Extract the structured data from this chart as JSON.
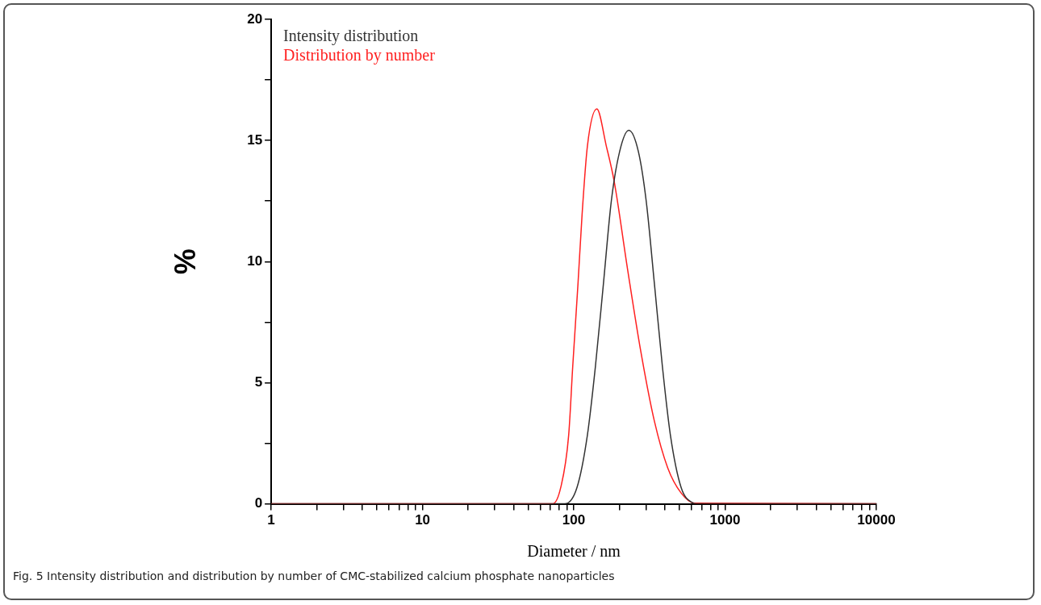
{
  "chart_data": {
    "type": "line",
    "xlabel": "Diameter / nm",
    "ylabel": "%",
    "log": "x",
    "legend": "top left",
    "marker": "none",
    "line_style": "solid",
    "grid": false,
    "xlim": [
      1,
      10000
    ],
    "ylim": [
      0,
      20
    ],
    "xticks": [
      1,
      {
        "value": 2,
        "label": null
      },
      {
        "value": 3,
        "label": null
      },
      {
        "value": 4,
        "label": null
      },
      {
        "value": 5,
        "label": null
      },
      {
        "value": 6,
        "label": null
      },
      {
        "value": 7,
        "label": null
      },
      {
        "value": 8,
        "label": null
      },
      {
        "value": 9,
        "label": null
      },
      10,
      {
        "value": 20,
        "label": null
      },
      {
        "value": 30,
        "label": null
      },
      {
        "value": 40,
        "label": null
      },
      {
        "value": 50,
        "label": null
      },
      {
        "value": 60,
        "label": null
      },
      {
        "value": 70,
        "label": null
      },
      {
        "value": 80,
        "label": null
      },
      {
        "value": 90,
        "label": null
      },
      100,
      {
        "value": 200,
        "label": null
      },
      {
        "value": 300,
        "label": null
      },
      {
        "value": 400,
        "label": null
      },
      {
        "value": 500,
        "label": null
      },
      {
        "value": 600,
        "label": null
      },
      {
        "value": 700,
        "label": null
      },
      {
        "value": 800,
        "label": null
      },
      {
        "value": 900,
        "label": null
      },
      1000,
      {
        "value": 2000,
        "label": null
      },
      {
        "value": 3000,
        "label": null
      },
      {
        "value": 4000,
        "label": null
      },
      {
        "value": 5000,
        "label": null
      },
      {
        "value": 6000,
        "label": null
      },
      {
        "value": 7000,
        "label": null
      },
      {
        "value": 8000,
        "label": null
      },
      {
        "value": 9000,
        "label": null
      },
      10000
    ],
    "yticks": [
      0,
      {
        "value": 2.5,
        "label": null
      },
      5,
      {
        "value": 7.5,
        "label": null
      },
      10,
      {
        "value": 12.5,
        "label": null
      },
      15,
      {
        "value": 17.5,
        "label": null
      },
      20
    ],
    "series": [
      {
        "name": "Intensity distribution",
        "color": "#333333",
        "x": [
          1,
          87,
          105,
          123,
          139,
          157,
          177,
          201,
          231,
          267,
          301,
          341,
          385,
          435,
          512,
          615,
          646,
          10000
        ],
        "values": [
          0,
          0,
          0.68,
          2.84,
          5.68,
          9.09,
          12.5,
          14.55,
          15.42,
          14.55,
          12.5,
          9.09,
          5.68,
          2.84,
          0.68,
          0.03,
          0,
          0
        ]
      },
      {
        "name": "Distribution by number",
        "color": "#ff2020",
        "x": [
          1,
          72.5,
          82,
          92.5,
          98.4,
          106.6,
          113.4,
          123,
          142,
          164,
          185,
          227,
          278,
          341,
          418,
          512,
          627,
          10000
        ],
        "values": [
          0,
          0,
          0.68,
          2.84,
          5.68,
          9.09,
          11.93,
          14.77,
          16.3,
          14.77,
          13.3,
          9.66,
          6.25,
          3.41,
          1.48,
          0.45,
          0.03,
          0
        ]
      }
    ],
    "annotations": [
      "Fig. 5 Intensity distribution and distribution by number of CMC-stabilized calcium phosphate nanoparticles"
    ]
  }
}
